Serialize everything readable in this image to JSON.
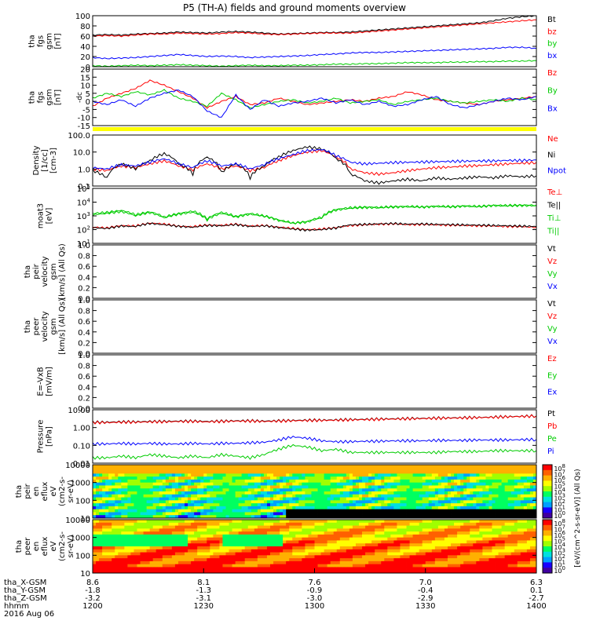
{
  "title": "P5 (TH-A) fields and ground moments overview",
  "colors": {
    "black": "#000000",
    "red": "#ff0000",
    "blue": "#0000ff",
    "green": "#00cc00",
    "yellow": "#ffff00"
  },
  "chart_data": [
    {
      "type": "line",
      "ylabel_lines": [
        "tha",
        "fgs",
        "gsm",
        "[nT]"
      ],
      "yticks": [
        "100",
        "80",
        "60",
        "40",
        "20",
        "0"
      ],
      "ylim": [
        0,
        100
      ],
      "legend": [
        "Bt",
        "bz",
        "by",
        "bx"
      ],
      "series": [
        {
          "name": "Bt",
          "color": "#000000",
          "values": [
            62,
            63,
            62,
            64,
            65,
            66,
            68,
            67,
            66,
            68,
            69,
            68,
            66,
            64,
            65,
            66,
            67,
            67,
            68,
            70,
            72,
            74,
            76,
            78,
            80,
            82,
            84,
            86,
            90,
            95,
            98,
            100
          ]
        },
        {
          "name": "bz",
          "color": "#ff0000",
          "values": [
            60,
            61,
            60,
            62,
            64,
            64,
            66,
            65,
            64,
            65,
            67,
            66,
            64,
            63,
            64,
            65,
            66,
            66,
            66,
            68,
            70,
            72,
            74,
            76,
            78,
            80,
            82,
            84,
            86,
            88,
            90,
            92
          ]
        },
        {
          "name": "by",
          "color": "#0000ff",
          "values": [
            18,
            16,
            17,
            18,
            20,
            22,
            24,
            22,
            20,
            21,
            20,
            18,
            19,
            20,
            21,
            22,
            24,
            25,
            27,
            28,
            28,
            29,
            30,
            31,
            32,
            33,
            34,
            35,
            36,
            38,
            38,
            36
          ]
        },
        {
          "name": "bx",
          "color": "#00cc00",
          "values": [
            2,
            1,
            2,
            3,
            2,
            3,
            4,
            3,
            2,
            1,
            2,
            3,
            2,
            2,
            3,
            3,
            4,
            5,
            5,
            6,
            6,
            7,
            8,
            8,
            8,
            9,
            9,
            10,
            10,
            11,
            11,
            12
          ]
        }
      ]
    },
    {
      "type": "line",
      "ylabel_lines": [
        "tha",
        "fgs",
        "gsm",
        "[nT]"
      ],
      "ylabel_dc": "-dc",
      "yticks": [
        "20",
        "15",
        "10",
        "5",
        "0",
        "-5",
        "-10",
        "-15"
      ],
      "ylim": [
        -15,
        20
      ],
      "legend": [
        "Bz",
        "By",
        "Bx"
      ],
      "series": [
        {
          "name": "Bz",
          "color": "#ff0000",
          "values": [
            -3,
            2,
            5,
            8,
            13,
            10,
            6,
            2,
            -4,
            0,
            3,
            -2,
            -1,
            2,
            0,
            -2,
            -1,
            0,
            1,
            0,
            2,
            3,
            6,
            4,
            1,
            0,
            -1,
            -2,
            0,
            1,
            2,
            3
          ]
        },
        {
          "name": "By",
          "color": "#00cc00",
          "values": [
            2,
            5,
            3,
            6,
            4,
            7,
            2,
            0,
            -3,
            5,
            1,
            -4,
            -2,
            0,
            1,
            -1,
            0,
            2,
            -1,
            0,
            1,
            -2,
            0,
            1,
            2,
            0,
            -1,
            0,
            1,
            0,
            2,
            1
          ]
        },
        {
          "name": "Bx",
          "color": "#0000ff",
          "values": [
            0,
            -2,
            1,
            -3,
            2,
            5,
            7,
            3,
            -6,
            -10,
            4,
            -5,
            1,
            -3,
            -1,
            0,
            2,
            -1,
            1,
            -2,
            0,
            -3,
            -2,
            1,
            3,
            -2,
            -4,
            -2,
            0,
            2,
            1,
            3
          ]
        }
      ]
    },
    {
      "type": "line",
      "ylabel_lines": [
        "Density",
        "[1/cc]",
        "[cm-3]"
      ],
      "yticks": [
        "100.0",
        "10.0",
        "1.0",
        "0.1"
      ],
      "log": true,
      "ylim": [
        0.1,
        100
      ],
      "legend": [
        "Ne",
        "Ni",
        "Npot"
      ],
      "series": [
        {
          "name": "Ne",
          "color": "#ff0000",
          "values": [
            1.0,
            0.8,
            1.5,
            1.2,
            2.0,
            3.0,
            1.5,
            0.9,
            2.0,
            1.0,
            1.5,
            0.8,
            1.2,
            3.0,
            6.0,
            10.0,
            12.0,
            5.0,
            1.0,
            0.6,
            0.5,
            0.6,
            0.8,
            1.0,
            1.2,
            1.3,
            1.5,
            1.6,
            1.8,
            2.0,
            2.2,
            2.4
          ]
        },
        {
          "name": "Ni",
          "color": "#000000",
          "values": [
            0.8,
            0.3,
            2.0,
            1.0,
            3.0,
            8.0,
            2.0,
            0.5,
            5.0,
            0.6,
            2.0,
            0.3,
            1.5,
            5.0,
            12.0,
            20.0,
            15.0,
            4.0,
            0.5,
            0.2,
            0.15,
            0.2,
            0.25,
            0.2,
            0.3,
            0.25,
            0.3,
            0.35,
            0.3,
            0.4,
            0.35,
            0.4
          ]
        },
        {
          "name": "Npot",
          "color": "#0000ff",
          "values": [
            1.2,
            1.0,
            1.8,
            1.5,
            2.5,
            4.0,
            2.0,
            1.2,
            3.0,
            1.5,
            2.0,
            1.0,
            1.8,
            4.0,
            7.0,
            12.0,
            14.0,
            6.0,
            2.5,
            2.0,
            2.2,
            2.4,
            2.5,
            2.6,
            2.7,
            2.8,
            2.9,
            3.0,
            3.0,
            3.2,
            3.2,
            3.4
          ]
        }
      ]
    },
    {
      "type": "line",
      "ylabel_lines": [
        "moat3",
        "[eV]"
      ],
      "yticks": [
        "10^5",
        "10^4",
        "10^3",
        "10^2",
        "10^1"
      ],
      "log": true,
      "ylim": [
        10,
        100000
      ],
      "legend": [
        "Te⊥",
        "Te||",
        "Ti⊥",
        "Ti||"
      ],
      "series": [
        {
          "name": "Te⊥",
          "color": "#ff0000",
          "values": [
            150,
            130,
            200,
            180,
            300,
            250,
            180,
            160,
            220,
            200,
            250,
            180,
            200,
            150,
            120,
            100,
            110,
            140,
            200,
            220,
            250,
            260,
            230,
            240,
            220,
            210,
            200,
            190,
            180,
            170,
            160,
            150
          ]
        },
        {
          "name": "Te||",
          "color": "#000000",
          "values": [
            140,
            120,
            180,
            170,
            280,
            230,
            170,
            150,
            200,
            190,
            230,
            170,
            190,
            140,
            110,
            90,
            100,
            130,
            220,
            240,
            260,
            280,
            250,
            260,
            240,
            230,
            220,
            210,
            200,
            190,
            180,
            170
          ]
        },
        {
          "name": "Ti⊥",
          "color": "#00cc00",
          "values": [
            1500,
            1800,
            2500,
            1200,
            2000,
            800,
            1500,
            2200,
            600,
            1800,
            900,
            1500,
            1000,
            500,
            300,
            400,
            800,
            3000,
            4000,
            4500,
            4200,
            4800,
            5000,
            4600,
            5200,
            4800,
            5500,
            5000,
            6000,
            5800,
            6200,
            6000
          ]
        },
        {
          "name": "Ti||",
          "color": "#00cc00",
          "values": [
            1200,
            1500,
            2000,
            1000,
            1700,
            700,
            1300,
            1800,
            500,
            1500,
            800,
            1300,
            900,
            450,
            280,
            350,
            700,
            2600,
            3500,
            4000,
            3800,
            4300,
            4500,
            4200,
            4700,
            4300,
            5000,
            4500,
            5500,
            5200,
            5600,
            5400
          ]
        }
      ]
    },
    {
      "type": "line",
      "ylabel_lines": [
        "tha",
        "peir",
        "velocity",
        "gsm",
        "[km/s] (All Qs)"
      ],
      "yticks": [
        "1.0",
        "0.8",
        "0.6",
        "0.4",
        "0.2",
        "0.0"
      ],
      "ylim": [
        0,
        1
      ],
      "legend": [
        "Vt",
        "Vz",
        "Vy",
        "Vx"
      ],
      "series": []
    },
    {
      "type": "line",
      "ylabel_lines": [
        "tha",
        "peer",
        "velocity",
        "gsm",
        "[km/s] (All Qs)"
      ],
      "yticks": [
        "1.0",
        "0.8",
        "0.6",
        "0.4",
        "0.2",
        "0.0"
      ],
      "ylim": [
        0,
        1
      ],
      "legend": [
        "Vt",
        "Vz",
        "Vy",
        "Vx"
      ],
      "series": []
    },
    {
      "type": "line",
      "ylabel_lines": [
        "E=-VxB",
        "[mV/m]"
      ],
      "yticks": [
        "1.0",
        "0.8",
        "0.6",
        "0.4",
        "0.2",
        "0.0"
      ],
      "ylim": [
        0,
        1
      ],
      "legend": [
        "Ez",
        "Ey",
        "Ex"
      ],
      "series": []
    },
    {
      "type": "line",
      "ylabel_lines": [
        "Pressure",
        "[nPa]"
      ],
      "yticks": [
        "10.00",
        "1.00",
        "0.10",
        "0.01"
      ],
      "log": true,
      "ylim": [
        0.01,
        10
      ],
      "legend": [
        "Pt",
        "Pb",
        "Pe",
        "Pi"
      ],
      "series": [
        {
          "name": "Pt",
          "color": "#000000",
          "values": [
            2.0,
            2.0,
            2.1,
            2.1,
            2.2,
            2.2,
            2.3,
            2.3,
            2.2,
            2.3,
            2.4,
            2.4,
            2.3,
            2.4,
            2.5,
            2.6,
            2.6,
            2.7,
            2.8,
            2.9,
            3.0,
            3.1,
            3.2,
            3.3,
            3.4,
            3.5,
            3.6,
            3.7,
            3.9,
            4.1,
            4.3,
            4.5
          ]
        },
        {
          "name": "Pb",
          "color": "#ff0000",
          "values": [
            1.9,
            1.9,
            2.0,
            2.0,
            2.1,
            2.1,
            2.2,
            2.2,
            2.1,
            2.2,
            2.3,
            2.3,
            2.2,
            2.3,
            2.4,
            2.5,
            2.5,
            2.6,
            2.7,
            2.8,
            2.9,
            3.0,
            3.1,
            3.2,
            3.3,
            3.4,
            3.5,
            3.6,
            3.8,
            4.0,
            4.2,
            4.4
          ]
        },
        {
          "name": "Pe",
          "color": "#0000ff",
          "values": [
            0.12,
            0.12,
            0.13,
            0.12,
            0.13,
            0.12,
            0.12,
            0.13,
            0.12,
            0.13,
            0.13,
            0.14,
            0.15,
            0.2,
            0.3,
            0.25,
            0.18,
            0.16,
            0.16,
            0.17,
            0.17,
            0.18,
            0.18,
            0.18,
            0.19,
            0.19,
            0.19,
            0.2,
            0.2,
            0.2,
            0.21,
            0.21
          ]
        },
        {
          "name": "Pi",
          "color": "#00cc00",
          "values": [
            0.02,
            0.02,
            0.025,
            0.02,
            0.03,
            0.025,
            0.02,
            0.025,
            0.02,
            0.03,
            0.025,
            0.02,
            0.03,
            0.06,
            0.1,
            0.08,
            0.05,
            0.06,
            0.04,
            0.04,
            0.04,
            0.04,
            0.04,
            0.04,
            0.04,
            0.045,
            0.045,
            0.045,
            0.05,
            0.05,
            0.05,
            0.05
          ]
        }
      ]
    },
    {
      "type": "heatmap",
      "ylabel_lines": [
        "tha",
        "peir",
        "en",
        "eflux",
        "eV",
        "(cm2-s-",
        "sr-eV)"
      ],
      "yticks": [
        "10000",
        "1000",
        "100",
        "10"
      ],
      "colorbar_ticks": [
        "10^8",
        "10^7",
        "10^6",
        "10^5",
        "10^4",
        "10^3",
        "10^2",
        "10^1",
        "10^0"
      ]
    },
    {
      "type": "heatmap",
      "ylabel_lines": [
        "tha",
        "peer",
        "en",
        "eflux",
        "eV",
        "(cm2-s-",
        "sr-eV)"
      ],
      "yticks": [
        "10000",
        "1000",
        "100",
        "10"
      ],
      "colorbar_ticks": [
        "10^8",
        "10^7",
        "10^6",
        "10^5",
        "10^4",
        "10^3",
        "10^2",
        "10^1",
        "10^0"
      ]
    }
  ],
  "colorbar_label": "[eV/(cm^2-s-sr-eV)] (All Qs)",
  "xaxis": {
    "rows": [
      {
        "label": "tha_X-GSM",
        "values": [
          "8.6",
          "8.1",
          "7.6",
          "7.0",
          "6.3"
        ]
      },
      {
        "label": "tha_Y-GSM",
        "values": [
          "-1.8",
          "-1.3",
          "-0.9",
          "-0.4",
          "0.1"
        ]
      },
      {
        "label": "tha_Z-GSM",
        "values": [
          "-3.2",
          "-3.1",
          "-3.0",
          "-2.9",
          "-2.7"
        ]
      },
      {
        "label": "hhmm",
        "values": [
          "1200",
          "1230",
          "1300",
          "1330",
          "1400"
        ]
      }
    ],
    "date": "2016 Aug 06"
  }
}
